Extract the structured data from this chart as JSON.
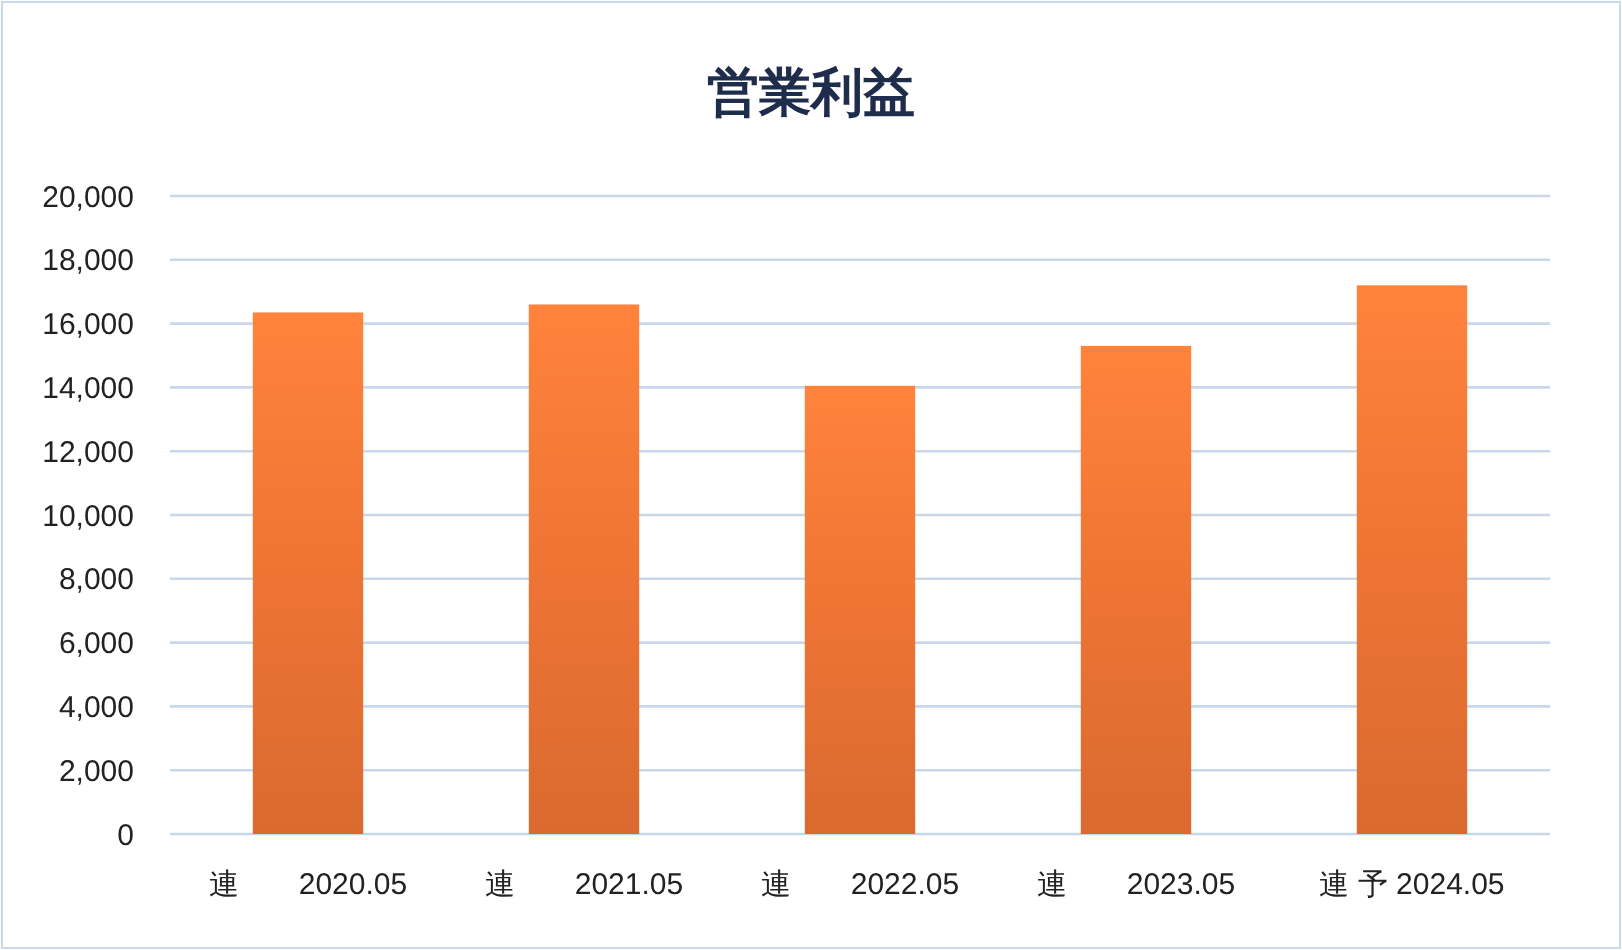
{
  "chart_data": {
    "type": "bar",
    "title": "営業利益",
    "categories": [
      "連　　2020.05",
      "連　　2021.05",
      "連　　2022.05",
      "連　　2023.05",
      "連 予 2024.05"
    ],
    "values": [
      16350,
      16600,
      14050,
      15300,
      17200
    ],
    "color": "#ee7434",
    "ylim": [
      0,
      20000
    ],
    "yticks": [
      {
        "value": 0,
        "label": "0"
      },
      {
        "value": 2000,
        "label": "2,000"
      },
      {
        "value": 4000,
        "label": "4,000"
      },
      {
        "value": 6000,
        "label": "6,000"
      },
      {
        "value": 8000,
        "label": "8,000"
      },
      {
        "value": 10000,
        "label": "10,000"
      },
      {
        "value": 12000,
        "label": "12,000"
      },
      {
        "value": 14000,
        "label": "14,000"
      },
      {
        "value": 16000,
        "label": "16,000"
      },
      {
        "value": 18000,
        "label": "18,000"
      },
      {
        "value": 20000,
        "label": "20,000"
      }
    ],
    "grid": "y"
  }
}
